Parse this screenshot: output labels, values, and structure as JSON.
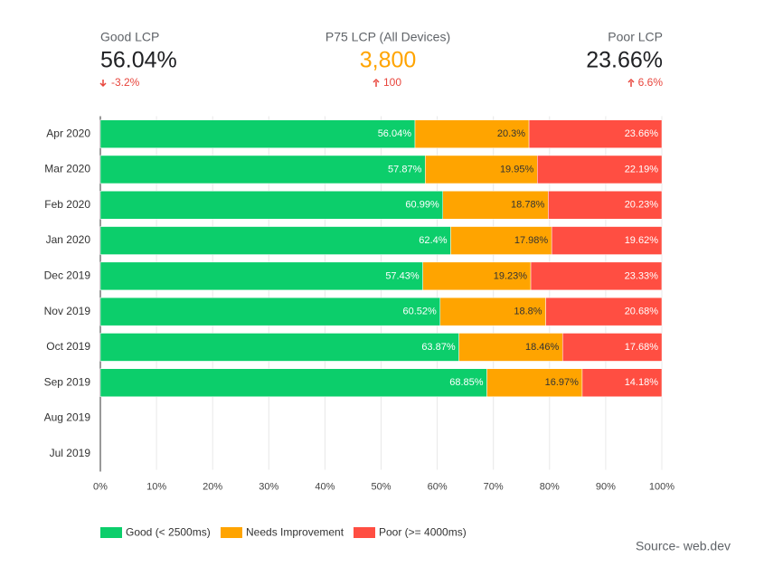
{
  "kpis": [
    {
      "label": "Good LCP",
      "value": "56.04%",
      "change": "-3.2%"
    },
    {
      "label": "P75 LCP (All Devices)",
      "value": "3,800",
      "change": "100"
    },
    {
      "label": "Poor LCP",
      "value": "23.66%",
      "change": "6.6%"
    }
  ],
  "source": "Source- web.dev",
  "chart_data": {
    "type": "stacked-bar-horizontal",
    "categories": [
      "Apr 2020",
      "Mar 2020",
      "Feb 2020",
      "Jan 2020",
      "Dec 2019",
      "Nov 2019",
      "Oct 2019",
      "Sep 2019",
      "Aug 2019",
      "Jul 2019"
    ],
    "series": [
      {
        "name": "Good (< 2500ms)",
        "color": "#0cce6b",
        "values": [
          56.04,
          57.87,
          60.99,
          62.4,
          57.43,
          60.52,
          63.87,
          68.85,
          null,
          null
        ],
        "value_labels": [
          "56.04%",
          "57.87%",
          "60.99%",
          "62.4%",
          "57.43%",
          "60.52%",
          "63.87%",
          "68.85%",
          null,
          null
        ]
      },
      {
        "name": "Needs Improvement",
        "color": "#ffa400",
        "values": [
          20.3,
          19.95,
          18.78,
          17.98,
          19.23,
          18.8,
          18.46,
          16.97,
          null,
          null
        ],
        "value_labels": [
          "20.3%",
          "19.95%",
          "18.78%",
          "17.98%",
          "19.23%",
          "18.8%",
          "18.46%",
          "16.97%",
          null,
          null
        ]
      },
      {
        "name": "Poor (>= 4000ms)",
        "color": "#ff4e42",
        "values": [
          23.66,
          22.19,
          20.23,
          19.62,
          23.33,
          20.68,
          17.68,
          14.18,
          null,
          null
        ],
        "value_labels": [
          "23.66%",
          "22.19%",
          "20.23%",
          "19.62%",
          "23.33%",
          "20.68%",
          "17.68%",
          "14.18%",
          null,
          null
        ]
      }
    ],
    "xlim": [
      0,
      100
    ],
    "xticks": [
      {
        "value": 0,
        "label": "0%"
      },
      {
        "value": 10,
        "label": "10%"
      },
      {
        "value": 20,
        "label": "20%"
      },
      {
        "value": 30,
        "label": "30%"
      },
      {
        "value": 40,
        "label": "40%"
      },
      {
        "value": 50,
        "label": "50%"
      },
      {
        "value": 60,
        "label": "60%"
      },
      {
        "value": 70,
        "label": "70%"
      },
      {
        "value": 80,
        "label": "80%"
      },
      {
        "value": 90,
        "label": "90%"
      },
      {
        "value": 100,
        "label": "100%"
      }
    ],
    "grid": true
  }
}
